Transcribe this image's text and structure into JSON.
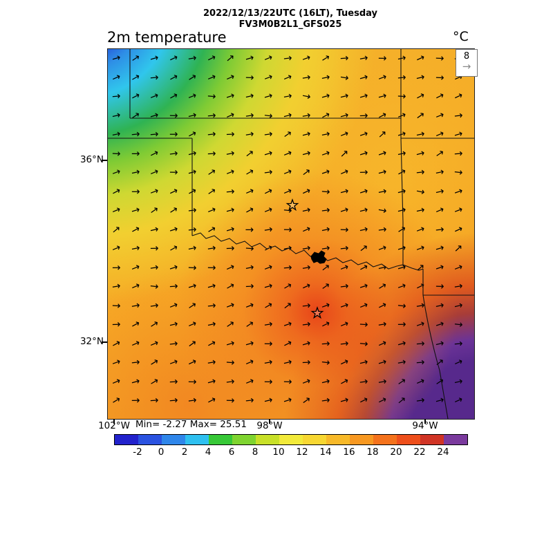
{
  "header": {
    "datetime_line": "2022/12/13/22UTC (16LT), Tuesday",
    "model_line": "FV3M0B2L1_GFS025"
  },
  "plot": {
    "title": "2m temperature",
    "units": "°C",
    "wind_ref_value": "8",
    "stats": "Min= -2.27 Max= 25.51",
    "y_ticks": [
      "36°N",
      "32°N"
    ],
    "x_ticks": [
      "102°W",
      "98°W",
      "94°W"
    ]
  },
  "icons": {
    "wind_arrow": "→"
  },
  "colorbar": {
    "tick_labels": [
      "-2",
      "0",
      "2",
      "4",
      "6",
      "8",
      "10",
      "12",
      "14",
      "16",
      "18",
      "20",
      "22",
      "24"
    ],
    "colors": [
      "#2222cc",
      "#2a52e0",
      "#2f86ea",
      "#2fc0f0",
      "#37c837",
      "#7fd430",
      "#c8e028",
      "#f2ea3a",
      "#f7d732",
      "#f7b929",
      "#f79821",
      "#f4721c",
      "#ee4f1b",
      "#d03425",
      "#7a3a9d"
    ]
  },
  "map": {
    "markers": [
      {
        "name": "star-marker-north",
        "x": 267,
        "y": 226
      },
      {
        "name": "star-marker-south",
        "x": 303,
        "y": 382
      }
    ]
  },
  "chart_data": {
    "type": "heatmap",
    "title": "2m temperature",
    "units": "°C",
    "valid_time": "2022/12/13/22UTC (16LT), Tuesday",
    "model": "FV3M0B2L1_GFS025",
    "min": -2.27,
    "max": 25.51,
    "colorbar_ticks": [
      -2,
      0,
      2,
      4,
      6,
      8,
      10,
      12,
      14,
      16,
      18,
      20,
      22,
      24
    ],
    "x_axis": {
      "label": "longitude",
      "ticks": [
        "102°W",
        "98°W",
        "94°W"
      ]
    },
    "y_axis": {
      "label": "latitude",
      "ticks": [
        "36°N",
        "32°N"
      ]
    },
    "wind_reference": 8,
    "overlays": [
      "wind vector arrows",
      "state boundaries (Oklahoma/Texas region, Red River)",
      "two star location markers",
      "lake (dark blob) on Red River"
    ],
    "regions": [
      {
        "area": "northwest corner",
        "approx_temp_c": "-2 to 8 (blue to green cold sector)"
      },
      {
        "area": "north and central",
        "approx_temp_c": "12 to 18 (yellow to orange)"
      },
      {
        "area": "south-central near southern star",
        "approx_temp_c": "20 to 24 (red)"
      },
      {
        "area": "southeast corner",
        "approx_temp_c": "24 to 25.5 (purple, field maximum)"
      }
    ]
  }
}
